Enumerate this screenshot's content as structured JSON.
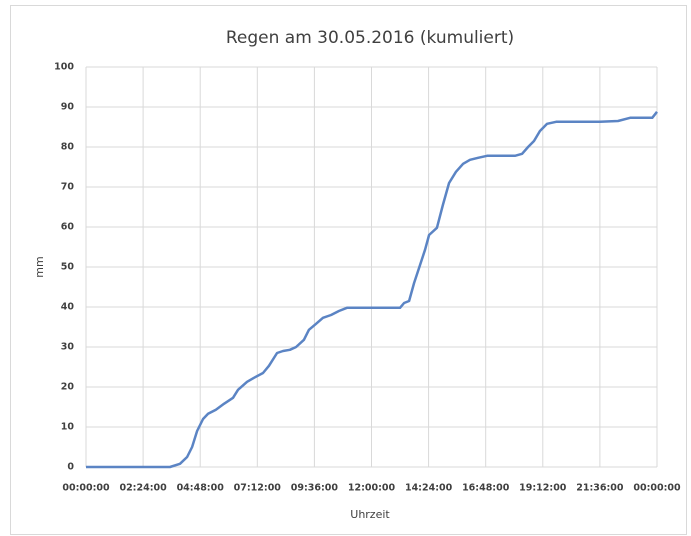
{
  "chart_data": {
    "type": "line",
    "title": "Regen am 30.05.2016 (kumuliert)",
    "x_label": "Uhrzeit",
    "y_label": "mm",
    "xlim": [
      0,
      24
    ],
    "xticks": [
      {
        "value": 0,
        "label": "00:00:00"
      },
      {
        "value": 2.4,
        "label": "02:24:00"
      },
      {
        "value": 4.8,
        "label": "04:48:00"
      },
      {
        "value": 7.2,
        "label": "07:12:00"
      },
      {
        "value": 9.6,
        "label": "09:36:00"
      },
      {
        "value": 12,
        "label": "12:00:00"
      },
      {
        "value": 14.4,
        "label": "14:24:00"
      },
      {
        "value": 16.8,
        "label": "16:48:00"
      },
      {
        "value": 19.2,
        "label": "19:12:00"
      },
      {
        "value": 21.6,
        "label": "21:36:00"
      },
      {
        "value": 24,
        "label": "00:00:00"
      }
    ],
    "ylim": [
      0,
      100
    ],
    "yticks": [
      0,
      10,
      20,
      30,
      40,
      50,
      60,
      70,
      80,
      90,
      100
    ],
    "grid": true,
    "x": [
      0,
      3.53,
      3.95,
      4.25,
      4.46,
      4.67,
      4.92,
      5.13,
      5.46,
      5.8,
      6.18,
      6.39,
      6.77,
      7.06,
      7.44,
      7.69,
      8.03,
      8.28,
      8.57,
      8.83,
      9.16,
      9.37,
      9.67,
      9.96,
      10.3,
      10.63,
      10.97,
      11.52,
      13.2,
      13.37,
      13.58,
      13.79,
      14.04,
      14.25,
      14.42,
      14.75,
      15.0,
      15.26,
      15.55,
      15.85,
      16.14,
      16.48,
      16.86,
      17.4,
      18.03,
      18.33,
      18.58,
      18.83,
      19.08,
      19.38,
      19.76,
      21.6,
      22.36,
      22.87,
      23.8,
      24.0
    ],
    "series": [
      {
        "color": "#5b84c4",
        "values": [
          0,
          0,
          0.8,
          2.5,
          5,
          9,
          12,
          13.3,
          14.3,
          15.8,
          17.3,
          19.3,
          21.3,
          22.3,
          23.5,
          25.3,
          28.5,
          29,
          29.3,
          30,
          31.8,
          34.3,
          35.8,
          37.3,
          38,
          39,
          39.8,
          39.8,
          39.8,
          41,
          41.5,
          46,
          50.5,
          54.3,
          58,
          59.8,
          65.5,
          71,
          73.8,
          75.8,
          76.8,
          77.3,
          77.8,
          77.8,
          77.8,
          78.3,
          80,
          81.5,
          84,
          85.8,
          86.3,
          86.3,
          86.5,
          87.3,
          87.3,
          88.8
        ]
      }
    ]
  }
}
